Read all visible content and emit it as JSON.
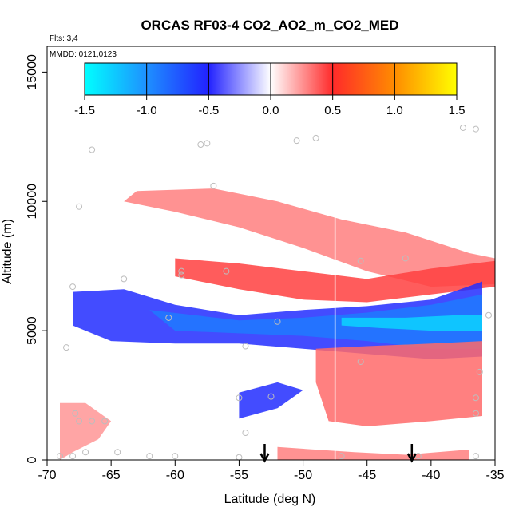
{
  "chart_data": {
    "type": "heatmap",
    "title": "ORCAS RF03-4 CO2_AO2_m_CO2_MED",
    "xlabel": "Latitude (deg N)",
    "ylabel": "Altitude (m)",
    "xlim": [
      -70,
      -35
    ],
    "ylim": [
      0,
      16000
    ],
    "x_ticks": [
      -70,
      -65,
      -60,
      -55,
      -50,
      -45,
      -40,
      -35
    ],
    "x_tick_labels": [
      "-70",
      "-65",
      "-60",
      "-55",
      "-50",
      "-45",
      "-40",
      "-35"
    ],
    "y_ticks": [
      0,
      5000,
      10000,
      15000
    ],
    "y_tick_labels": [
      "0",
      "5000",
      "10000",
      "15000"
    ],
    "flights_label": "Flts: 3,4",
    "dates_label": "MMDD: 0121,0123",
    "colorbar": {
      "min": -1.5,
      "max": 1.5,
      "ticks": [
        -1.5,
        -1.0,
        -0.5,
        0.0,
        0.5,
        1.0,
        1.5
      ],
      "tick_labels": [
        "-1.5",
        "-1.0",
        "-0.5",
        "0.0",
        "0.5",
        "1.0",
        "1.5"
      ],
      "stops": [
        {
          "value": -1.5,
          "color": "#00ffff"
        },
        {
          "value": -1.0,
          "color": "#1e90ff"
        },
        {
          "value": -0.5,
          "color": "#2222ff"
        },
        {
          "value": 0.0,
          "color": "#ffffff"
        },
        {
          "value": 0.5,
          "color": "#ff2a2a"
        },
        {
          "value": 1.0,
          "color": "#ff8c00"
        },
        {
          "value": 1.5,
          "color": "#ffff00"
        }
      ]
    },
    "regions": [
      {
        "name": "upper-positive-band",
        "value": 0.3,
        "polygon": [
          [
            -63,
            10400
          ],
          [
            -57,
            10500
          ],
          [
            -52,
            10000
          ],
          [
            -47,
            9300
          ],
          [
            -42,
            8800
          ],
          [
            -37,
            8000
          ],
          [
            -35,
            7800
          ],
          [
            -35,
            6800
          ],
          [
            -40,
            6700
          ],
          [
            -45,
            7300
          ],
          [
            -50,
            8200
          ],
          [
            -55,
            9000
          ],
          [
            -60,
            9600
          ],
          [
            -64,
            10000
          ]
        ]
      },
      {
        "name": "mid-positive-band",
        "value": 0.45,
        "polygon": [
          [
            -60,
            7800
          ],
          [
            -55,
            7600
          ],
          [
            -50,
            7300
          ],
          [
            -45,
            7000
          ],
          [
            -40,
            7400
          ],
          [
            -35,
            7700
          ],
          [
            -35,
            6700
          ],
          [
            -40,
            6400
          ],
          [
            -45,
            6100
          ],
          [
            -50,
            6200
          ],
          [
            -55,
            6600
          ],
          [
            -60,
            7100
          ]
        ]
      },
      {
        "name": "mid-negative-band",
        "value": -0.55,
        "polygon": [
          [
            -68,
            6500
          ],
          [
            -64,
            6600
          ],
          [
            -60,
            6000
          ],
          [
            -55,
            5600
          ],
          [
            -50,
            5800
          ],
          [
            -45,
            5950
          ],
          [
            -40,
            6200
          ],
          [
            -36,
            6900
          ],
          [
            -36,
            4000
          ],
          [
            -40,
            3900
          ],
          [
            -45,
            4100
          ],
          [
            -50,
            4300
          ],
          [
            -55,
            4500
          ],
          [
            -60,
            4500
          ],
          [
            -65,
            4600
          ],
          [
            -68,
            5200
          ]
        ]
      },
      {
        "name": "deep-negative-core",
        "value": -0.9,
        "polygon": [
          [
            -62,
            5800
          ],
          [
            -55,
            5400
          ],
          [
            -50,
            5500
          ],
          [
            -45,
            5700
          ],
          [
            -40,
            6000
          ],
          [
            -36,
            6400
          ],
          [
            -36,
            4300
          ],
          [
            -40,
            4300
          ],
          [
            -45,
            4600
          ],
          [
            -50,
            4800
          ],
          [
            -55,
            4900
          ],
          [
            -60,
            5000
          ]
        ]
      },
      {
        "name": "strong-negative-tongue",
        "value": -1.3,
        "polygon": [
          [
            -47,
            5500
          ],
          [
            -42,
            5500
          ],
          [
            -38,
            5600
          ],
          [
            -36,
            5600
          ],
          [
            -36,
            5000
          ],
          [
            -40,
            5000
          ],
          [
            -44,
            5100
          ],
          [
            -47,
            5200
          ]
        ]
      },
      {
        "name": "lower-positive-plume",
        "value": 0.35,
        "polygon": [
          [
            -49,
            4300
          ],
          [
            -45,
            4400
          ],
          [
            -40,
            4500
          ],
          [
            -36,
            4600
          ],
          [
            -36,
            1700
          ],
          [
            -40,
            1500
          ],
          [
            -45,
            1300
          ],
          [
            -48,
            1500
          ],
          [
            -49,
            3000
          ]
        ]
      },
      {
        "name": "low-negative-patch",
        "value": -0.55,
        "polygon": [
          [
            -55,
            2600
          ],
          [
            -52,
            3000
          ],
          [
            -50,
            2700
          ],
          [
            -52,
            2000
          ],
          [
            -55,
            1600
          ]
        ]
      },
      {
        "name": "near-surface-positive",
        "value": 0.3,
        "polygon": [
          [
            -52,
            500
          ],
          [
            -46,
            300
          ],
          [
            -42,
            200
          ],
          [
            -37,
            400
          ],
          [
            -37,
            0
          ],
          [
            -52,
            0
          ]
        ]
      },
      {
        "name": "western-positive-column",
        "value": 0.25,
        "polygon": [
          [
            -69,
            2200
          ],
          [
            -67,
            2200
          ],
          [
            -65,
            1500
          ],
          [
            -66,
            800
          ],
          [
            -68,
            300
          ],
          [
            -69,
            0
          ]
        ]
      }
    ],
    "observation_points": [
      {
        "x": -66.5,
        "y": 12000
      },
      {
        "x": -67.5,
        "y": 9800
      },
      {
        "x": -58,
        "y": 12200
      },
      {
        "x": -57.5,
        "y": 12250
      },
      {
        "x": -50.5,
        "y": 12350
      },
      {
        "x": -49,
        "y": 12450
      },
      {
        "x": -37.5,
        "y": 12850
      },
      {
        "x": -36.5,
        "y": 12800
      },
      {
        "x": -57,
        "y": 10600
      },
      {
        "x": -64,
        "y": 7000
      },
      {
        "x": -59.5,
        "y": 7300
      },
      {
        "x": -59.5,
        "y": 7150
      },
      {
        "x": -56,
        "y": 7300
      },
      {
        "x": -68,
        "y": 6700
      },
      {
        "x": -60.5,
        "y": 5500
      },
      {
        "x": -52,
        "y": 5350
      },
      {
        "x": -68.5,
        "y": 4350
      },
      {
        "x": -54.5,
        "y": 4400
      },
      {
        "x": -45.5,
        "y": 3800
      },
      {
        "x": -55,
        "y": 2400
      },
      {
        "x": -52.5,
        "y": 2450
      },
      {
        "x": -67.5,
        "y": 1500
      },
      {
        "x": -66.5,
        "y": 1500
      },
      {
        "x": -65.5,
        "y": 1500
      },
      {
        "x": -67.8,
        "y": 1800
      },
      {
        "x": -54.5,
        "y": 1050
      },
      {
        "x": -67,
        "y": 300
      },
      {
        "x": -69,
        "y": 150
      },
      {
        "x": -68,
        "y": 150
      },
      {
        "x": -64.5,
        "y": 300
      },
      {
        "x": -62,
        "y": 150
      },
      {
        "x": -60,
        "y": 150
      },
      {
        "x": -55,
        "y": 100
      },
      {
        "x": -47,
        "y": 150
      },
      {
        "x": -41,
        "y": 150
      },
      {
        "x": -36.5,
        "y": 150
      },
      {
        "x": -36.2,
        "y": 3400
      },
      {
        "x": -35.5,
        "y": 5600
      },
      {
        "x": -36.5,
        "y": 1800
      },
      {
        "x": -36.5,
        "y": 2400
      },
      {
        "x": -45.5,
        "y": 7700
      },
      {
        "x": -42,
        "y": 7800
      }
    ],
    "arrows_at_latitude": [
      -53,
      -41.5
    ],
    "vertical_lines_at_latitude": [
      -47.5
    ]
  }
}
